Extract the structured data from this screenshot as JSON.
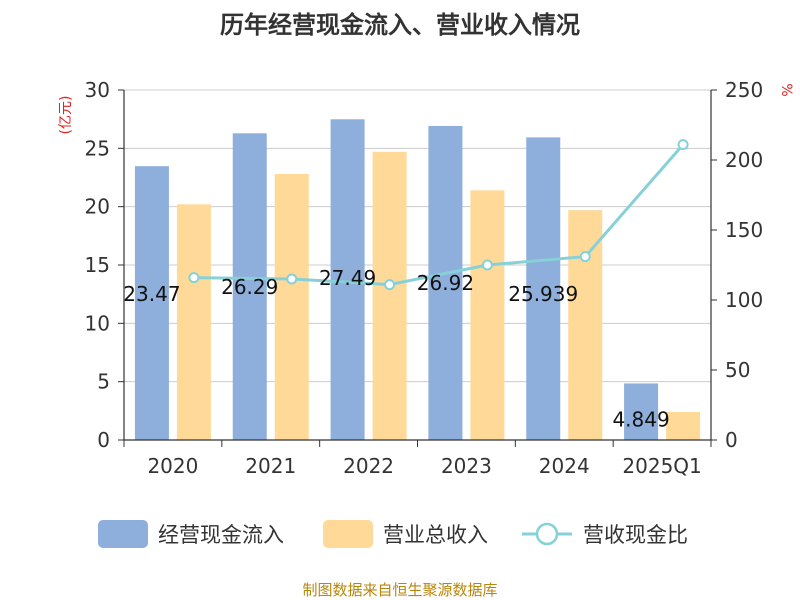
{
  "chart_data": {
    "type": "bar",
    "title": "历年经营现金流入、营业收入情况",
    "categories": [
      "2020",
      "2021",
      "2022",
      "2023",
      "2024",
      "2025Q1"
    ],
    "left_axis": {
      "unit_label": "(亿元)",
      "ylim": [
        0,
        30
      ],
      "ticks": [
        "0",
        "5",
        "10",
        "15",
        "20",
        "25",
        "30"
      ]
    },
    "right_axis": {
      "unit_label": "%",
      "ylim": [
        0,
        250
      ],
      "ticks": [
        "0",
        "50",
        "100",
        "150",
        "200",
        "250"
      ]
    },
    "series": [
      {
        "name": "经营现金流入",
        "kind": "bar",
        "axis": "left",
        "color": "#8eaedb",
        "values": [
          23.47,
          26.29,
          27.49,
          26.92,
          25.94,
          4.849
        ],
        "labels": [
          "23.47",
          "26.29",
          "27.49",
          "26.92",
          "25.939",
          "4.849"
        ]
      },
      {
        "name": "营业总收入",
        "kind": "bar",
        "axis": "left",
        "color": "#ffd998",
        "values": [
          20.2,
          22.8,
          24.7,
          21.4,
          19.7,
          2.4
        ]
      },
      {
        "name": "营收现金比",
        "kind": "line",
        "axis": "right",
        "color": "#86d1d8",
        "values": [
          116,
          115,
          111,
          125,
          131,
          211
        ]
      }
    ],
    "grid": true,
    "legend_position": "bottom"
  },
  "source": "制图数据来自恒生聚源数据库"
}
